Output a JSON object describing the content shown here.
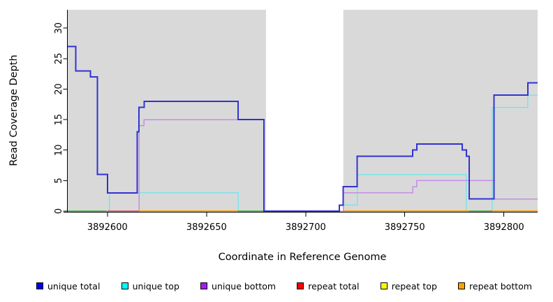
{
  "chart_data": {
    "type": "line",
    "subtype": "step",
    "title": "",
    "xlabel": "Coordinate in Reference Genome",
    "ylabel": "Read Coverage Depth",
    "xlim": [
      3892580,
      3892817
    ],
    "ylim": [
      0,
      33
    ],
    "xticks": [
      3892600,
      3892650,
      3892700,
      3892750,
      3892800
    ],
    "xtick_labels": [
      "3892600",
      "3892650",
      "3892700",
      "3892750",
      "3892800"
    ],
    "yticks": [
      0,
      5,
      10,
      15,
      20,
      25,
      30
    ],
    "ytick_labels": [
      "0",
      "5",
      "10",
      "15",
      "20",
      "25",
      "30"
    ],
    "grid": false,
    "legend_position": "bottom",
    "plot_bg": "#d9d9d9",
    "masked_region": {
      "from": 3892680,
      "to": 3892719,
      "color": "#ffffff"
    },
    "series": [
      {
        "name": "unique total",
        "color": "#3232d2",
        "width": 2,
        "steps": [
          [
            3892580,
            27
          ],
          [
            3892584,
            23
          ],
          [
            3892591.5,
            22
          ],
          [
            3892595,
            6
          ],
          [
            3892600,
            3
          ],
          [
            3892615,
            13
          ],
          [
            3892616,
            17
          ],
          [
            3892618.5,
            18
          ],
          [
            3892666,
            15
          ],
          [
            3892679,
            0
          ],
          [
            3892717,
            1
          ],
          [
            3892719,
            4
          ],
          [
            3892726,
            9
          ],
          [
            3892754,
            10
          ],
          [
            3892756,
            11
          ],
          [
            3892779,
            10
          ],
          [
            3892781,
            9
          ],
          [
            3892782.5,
            2
          ],
          [
            3892795,
            19
          ],
          [
            3892812,
            21
          ]
        ]
      },
      {
        "name": "unique top",
        "color": "#7ce4e9",
        "width": 1.5,
        "steps": [
          [
            3892580,
            0
          ],
          [
            3892601,
            3
          ],
          [
            3892666,
            0
          ],
          [
            3892719,
            1
          ],
          [
            3892726,
            6
          ],
          [
            3892781,
            0
          ],
          [
            3892794,
            17
          ],
          [
            3892812,
            19
          ]
        ]
      },
      {
        "name": "unique bottom",
        "color": "#c28ee2",
        "width": 1.5,
        "steps": [
          [
            3892580,
            0
          ],
          [
            3892616,
            14
          ],
          [
            3892618.5,
            15
          ],
          [
            3892679,
            0
          ],
          [
            3892719,
            3
          ],
          [
            3892754,
            4
          ],
          [
            3892756,
            5
          ],
          [
            3892795,
            2
          ]
        ]
      },
      {
        "name": "repeat total",
        "color": "#e03030",
        "width": 1.5,
        "steps": [
          [
            3892580,
            0
          ]
        ]
      },
      {
        "name": "repeat top",
        "color": "#f0e800",
        "width": 1.5,
        "steps": [
          [
            3892580,
            0
          ]
        ]
      },
      {
        "name": "repeat bottom",
        "color": "#ff9d00",
        "width": 1.5,
        "steps": [
          [
            3892580,
            0
          ]
        ]
      }
    ],
    "zero_line_segments": [
      {
        "from": 3892580,
        "to": 3892599.5,
        "color": "#5db45e"
      },
      {
        "from": 3892600,
        "to": 3892616,
        "color": "#d9687f"
      },
      {
        "from": 3892616,
        "to": 3892666,
        "color": "#ff9d00"
      },
      {
        "from": 3892666,
        "to": 3892680,
        "color": "#5db45e"
      },
      {
        "from": 3892719,
        "to": 3892782.5,
        "color": "#ff9d00"
      },
      {
        "from": 3892782.5,
        "to": 3892794,
        "color": "#5db45e"
      },
      {
        "from": 3892794,
        "to": 3892817,
        "color": "#ff9d00"
      }
    ],
    "legend": [
      {
        "label": "unique total",
        "color": "#0000ee"
      },
      {
        "label": "unique top",
        "color": "#00ffff"
      },
      {
        "label": "unique bottom",
        "color": "#a020f0"
      },
      {
        "label": "repeat total",
        "color": "#ff0000"
      },
      {
        "label": "repeat top",
        "color": "#ffff00"
      },
      {
        "label": "repeat bottom",
        "color": "#ffa500"
      }
    ]
  }
}
